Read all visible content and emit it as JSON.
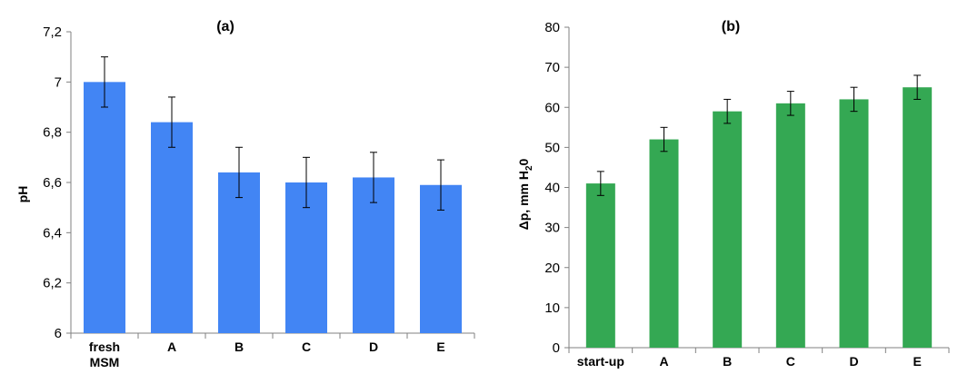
{
  "chart_data": [
    {
      "type": "bar",
      "title": "(a)",
      "ylabel": "pH",
      "xlabel": "",
      "categories": [
        "fresh MSM",
        "A",
        "B",
        "C",
        "D",
        "E"
      ],
      "values": [
        7.0,
        6.84,
        6.64,
        6.6,
        6.62,
        6.59
      ],
      "error": [
        0.1,
        0.1,
        0.1,
        0.1,
        0.1,
        0.1
      ],
      "ylim": [
        6,
        7.2
      ],
      "yticks": [
        "6",
        "6,2",
        "6,4",
        "6,6",
        "6,8",
        "7",
        "7,2"
      ],
      "bar_color": "#4285F4",
      "grid": false,
      "legend": "none"
    },
    {
      "type": "bar",
      "title": "(b)",
      "ylabel_parts": [
        "Δp, mm H",
        "2",
        "0"
      ],
      "xlabel": "",
      "categories": [
        "start-up",
        "A",
        "B",
        "C",
        "D",
        "E"
      ],
      "values": [
        41,
        52,
        59,
        61,
        62,
        65
      ],
      "error": [
        3,
        3,
        3,
        3,
        3,
        3
      ],
      "ylim": [
        0,
        80
      ],
      "yticks": [
        "0",
        "10",
        "20",
        "30",
        "40",
        "50",
        "60",
        "70",
        "80"
      ],
      "bar_color": "#34A853",
      "grid": false,
      "legend": "none"
    }
  ]
}
